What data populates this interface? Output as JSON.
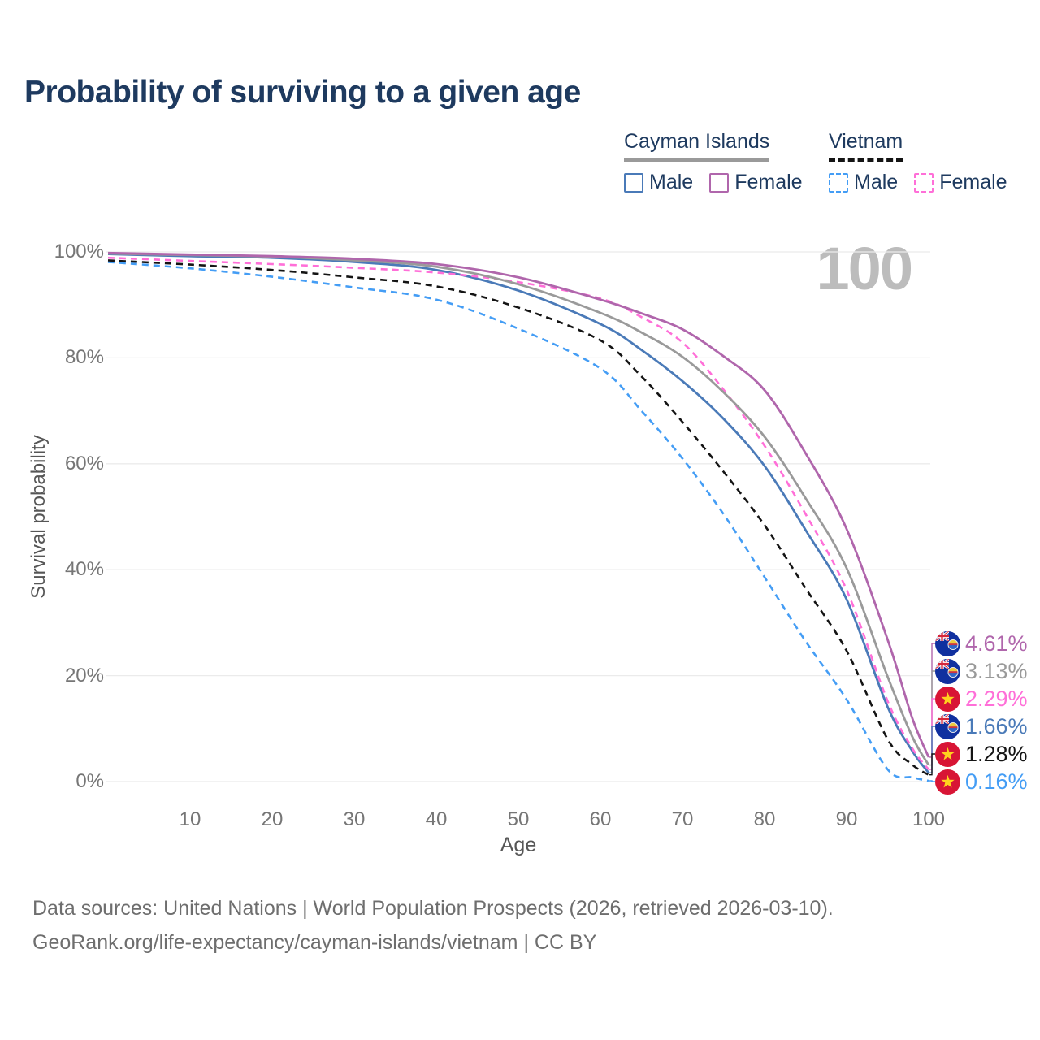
{
  "page": {
    "title": "Probability of surviving to a given age",
    "watermark": "100"
  },
  "legend": {
    "groups": [
      {
        "title": "Cayman Islands",
        "line_style": "solid",
        "underline_color": "#9a9a9a",
        "items": [
          {
            "label": "Male",
            "color": "#4a7ab8"
          },
          {
            "label": "Female",
            "color": "#b066ac"
          }
        ]
      },
      {
        "title": "Vietnam",
        "line_style": "dashed",
        "underline_color": "#141414",
        "items": [
          {
            "label": "Male",
            "color": "#449df5"
          },
          {
            "label": "Female",
            "color": "#ff6fd8"
          }
        ]
      }
    ]
  },
  "chart_data": {
    "type": "line",
    "title": "Probability of surviving to a given age",
    "xlabel": "Age",
    "ylabel": "Survival probability",
    "xlim": [
      0,
      100
    ],
    "ylim": [
      0,
      100
    ],
    "grid": "horizontal",
    "legend_position": "top-right",
    "watermark": "100",
    "x_ticks": [
      10,
      20,
      30,
      40,
      50,
      60,
      70,
      80,
      90,
      100
    ],
    "y_ticks": [
      {
        "value": 0,
        "label": "0%"
      },
      {
        "value": 20,
        "label": "20%"
      },
      {
        "value": 40,
        "label": "40%"
      },
      {
        "value": 60,
        "label": "60%"
      },
      {
        "value": 80,
        "label": "80%"
      },
      {
        "value": 100,
        "label": "100%"
      }
    ],
    "x": [
      0,
      10,
      20,
      30,
      40,
      50,
      60,
      65,
      70,
      75,
      80,
      85,
      90,
      95,
      98,
      100
    ],
    "series": [
      {
        "name": "Cayman Islands Female",
        "country": "Cayman Islands",
        "sex": "Female",
        "color": "#b066ac",
        "dashed": false,
        "flag": "cayman",
        "end_label": "4.61%",
        "values": [
          99.8,
          99.5,
          99.2,
          98.7,
          97.7,
          95.2,
          91.0,
          88.4,
          85.4,
          80.3,
          73.9,
          62.0,
          47.7,
          26.8,
          12.0,
          4.61
        ]
      },
      {
        "name": "Cayman Islands Total",
        "country": "Cayman Islands",
        "sex": "Both",
        "color": "#9a9a9a",
        "dashed": false,
        "flag": "cayman",
        "end_label": "3.13%",
        "values": [
          99.7,
          99.4,
          99.1,
          98.4,
          97.2,
          93.9,
          88.5,
          84.8,
          80.2,
          73.5,
          65.1,
          53.5,
          40.3,
          19.8,
          8.5,
          3.13
        ]
      },
      {
        "name": "Vietnam Female",
        "country": "Vietnam",
        "sex": "Female",
        "color": "#ff6fd8",
        "dashed": true,
        "flag": "vietnam",
        "end_label": "2.29%",
        "values": [
          98.9,
          98.3,
          97.7,
          97.0,
          96.1,
          94.3,
          91.2,
          87.7,
          82.9,
          74.0,
          63.4,
          50.5,
          36.2,
          15.2,
          6.3,
          2.29
        ]
      },
      {
        "name": "Cayman Islands Male",
        "country": "Cayman Islands",
        "sex": "Male",
        "color": "#4a7ab8",
        "dashed": false,
        "flag": "cayman",
        "end_label": "1.66%",
        "values": [
          99.6,
          99.2,
          98.9,
          98.1,
          96.6,
          92.7,
          86.4,
          81.5,
          75.6,
          68.5,
          59.6,
          47.5,
          34.4,
          14.1,
          5.8,
          1.66
        ]
      },
      {
        "name": "Vietnam Total",
        "country": "Vietnam",
        "sex": "Both",
        "color": "#141414",
        "dashed": true,
        "flag": "vietnam",
        "end_label": "1.28%",
        "values": [
          98.4,
          97.6,
          96.6,
          95.2,
          93.5,
          89.5,
          83.3,
          76.5,
          67.9,
          58.5,
          48.4,
          36.5,
          24.7,
          8.0,
          3.2,
          1.28
        ]
      },
      {
        "name": "Vietnam Male",
        "country": "Vietnam",
        "sex": "Male",
        "color": "#449df5",
        "dashed": true,
        "flag": "vietnam",
        "end_label": "0.16%",
        "values": [
          98.1,
          96.9,
          95.3,
          93.3,
          91.0,
          85.5,
          78.0,
          70.0,
          61.0,
          50.5,
          38.6,
          26.5,
          15.5,
          2.3,
          0.8,
          0.16
        ]
      }
    ]
  },
  "footer": {
    "line1": "Data sources: United Nations | World Population Prospects (2026, retrieved 2026-03-10).",
    "line2": "GeoRank.org/life-expectancy/cayman-islands/vietnam | CC BY"
  }
}
